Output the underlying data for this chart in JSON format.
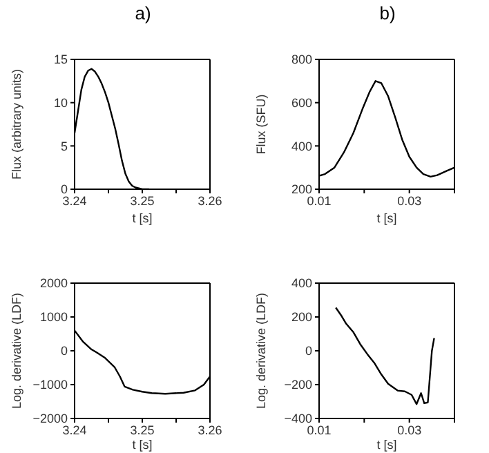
{
  "chart_data": [
    {
      "type": "line",
      "title": "a)",
      "xlabel": "t [s]",
      "ylabel": "Flux  (arbitrary units)",
      "color": "#000000",
      "marker": "none",
      "xlim": [
        3.24,
        3.26
      ],
      "ylim": [
        0,
        15
      ],
      "xticks": [
        3.24,
        {
          "value": 3.245,
          "label": null
        },
        3.25,
        {
          "value": 3.255,
          "label": null
        },
        3.26
      ],
      "yticks": [
        0,
        5,
        10,
        15
      ],
      "x": [
        3.24,
        3.2405,
        3.241,
        3.2415,
        3.242,
        3.2425,
        3.243,
        3.2435,
        3.244,
        3.2445,
        3.245,
        3.2455,
        3.246,
        3.2465,
        3.247,
        3.2475,
        3.248,
        3.2485,
        3.249,
        3.2495,
        3.25,
        3.251
      ],
      "values": [
        6.5,
        9,
        11.5,
        13,
        13.7,
        13.9,
        13.6,
        13,
        12.2,
        11.2,
        10,
        8.5,
        7,
        5.2,
        3.3,
        1.8,
        0.9,
        0.4,
        0.2,
        0.1,
        0,
        0
      ]
    },
    {
      "type": "line",
      "title": "b)",
      "xlabel": "t [s]",
      "ylabel": "Flux  (SFU)",
      "color": "#000000",
      "marker": "none",
      "xlim": [
        0.01,
        0.04
      ],
      "ylim": [
        200,
        800
      ],
      "xticks": [
        0.01,
        {
          "value": 0.02,
          "label": null
        },
        0.03,
        {
          "value": 0.04,
          "label": null
        }
      ],
      "yticks": [
        200,
        400,
        600,
        800
      ],
      "x": [
        0.01,
        0.0113,
        0.0134,
        0.0155,
        0.0176,
        0.0196,
        0.0212,
        0.0225,
        0.0238,
        0.0253,
        0.0269,
        0.0284,
        0.03,
        0.0316,
        0.0331,
        0.0347,
        0.0362,
        0.0383,
        0.04
      ],
      "values": [
        262,
        270,
        300,
        370,
        460,
        570,
        650,
        700,
        690,
        630,
        530,
        430,
        350,
        300,
        270,
        258,
        265,
        285,
        300
      ]
    },
    {
      "type": "line",
      "xlabel": "t [s]",
      "ylabel": "Log. derivative (LDF)",
      "color": "#000000",
      "marker": "none",
      "xlim": [
        3.24,
        3.26
      ],
      "ylim": [
        -2000,
        2000
      ],
      "xticks": [
        3.24,
        {
          "value": 3.245,
          "label": null
        },
        3.25,
        {
          "value": 3.255,
          "label": null
        },
        3.26
      ],
      "yticks": [
        -2000,
        -1000,
        0,
        1000,
        2000
      ],
      "x": [
        3.24,
        3.2412,
        3.2425,
        3.2432,
        3.2445,
        3.2459,
        3.2467,
        3.2474,
        3.2486,
        3.25,
        3.2514,
        3.2534,
        3.2561,
        3.2578,
        3.2591,
        3.26
      ],
      "values": [
        600,
        280,
        40,
        -40,
        -210,
        -480,
        -760,
        -1060,
        -1150,
        -1210,
        -1250,
        -1270,
        -1240,
        -1170,
        -1000,
        -760
      ]
    },
    {
      "type": "line",
      "xlabel": "t [s]",
      "ylabel": "Log. derivative (LDF)",
      "color": "#000000",
      "marker": "none",
      "xlim": [
        0.01,
        0.04
      ],
      "ylim": [
        -400,
        400
      ],
      "xticks": [
        0.01,
        {
          "value": 0.02,
          "label": null
        },
        0.03,
        {
          "value": 0.04,
          "label": null
        }
      ],
      "yticks": [
        -400,
        -200,
        0,
        200,
        400
      ],
      "x": [
        0.0137,
        0.015,
        0.016,
        0.0176,
        0.0191,
        0.0207,
        0.0222,
        0.0238,
        0.0253,
        0.0274,
        0.029,
        0.0305,
        0.0316,
        0.0326,
        0.0333,
        0.0341,
        0.035,
        0.0355
      ],
      "values": [
        255,
        205,
        160,
        110,
        40,
        -20,
        -70,
        -140,
        -195,
        -235,
        -240,
        -260,
        -315,
        -250,
        -310,
        -305,
        0,
        75
      ]
    }
  ]
}
